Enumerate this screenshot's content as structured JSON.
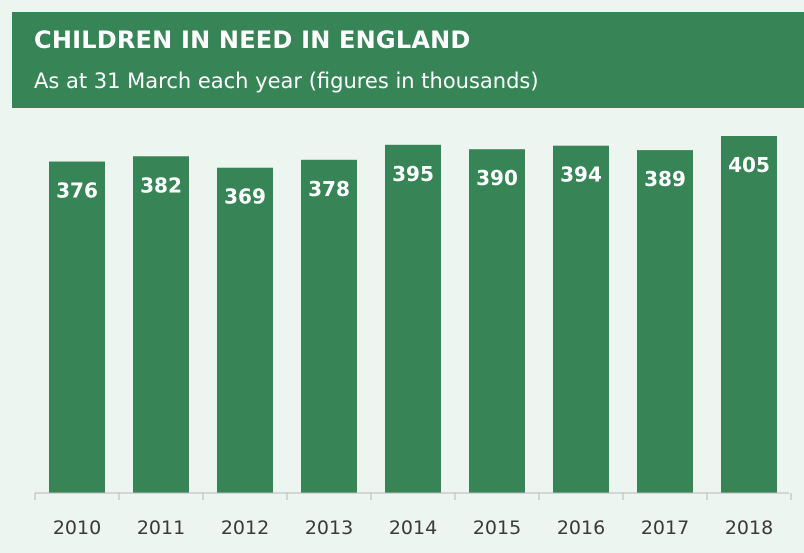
{
  "header": {
    "title": "CHILDREN IN NEED IN ENGLAND",
    "subtitle": "As at 31 March each year (figures in thousands)"
  },
  "colors": {
    "header_bg": "#378457",
    "bar": "#378457",
    "plot_bg": "#edf5f0",
    "label_on_bar": "#ffffff",
    "tick_label": "#3a3a3a",
    "axis": "#b8b8b8"
  },
  "chart_data": {
    "type": "bar",
    "title": "CHILDREN IN NEED IN ENGLAND",
    "subtitle": "As at 31 March each year (figures in thousands)",
    "categories": [
      "2010",
      "2011",
      "2012",
      "2013",
      "2014",
      "2015",
      "2016",
      "2017",
      "2018"
    ],
    "values": [
      376,
      382,
      369,
      378,
      395,
      390,
      394,
      389,
      405
    ],
    "data_labels": [
      "376",
      "382",
      "369",
      "378",
      "395",
      "390",
      "394",
      "389",
      "405"
    ],
    "ylim": [
      0,
      405
    ],
    "grid": false,
    "legend": "none"
  }
}
